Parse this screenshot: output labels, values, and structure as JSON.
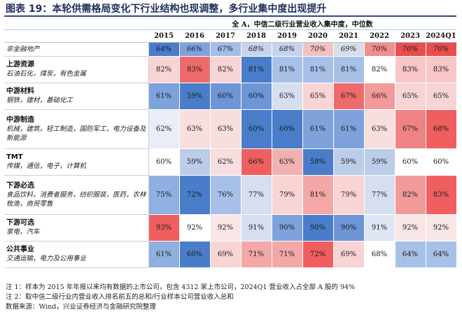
{
  "figure_title": "图表 19：本轮供需格局变化下行业结构也现调整，多行业集中度出现提升",
  "table_header": "全 A，中信二级行业营业收入集中度，中位数",
  "columns": [
    "2015",
    "2016",
    "2017",
    "2018",
    "2019",
    "2020",
    "2021",
    "2022",
    "2023",
    "2024Q1"
  ],
  "rows": [
    {
      "name": "",
      "sub": "非金融地产",
      "values": [
        "64%",
        "66%",
        "67%",
        "68%",
        "68%",
        "70%",
        "69%",
        "70%",
        "70%",
        "70%"
      ],
      "colors": [
        "#4a7dc9",
        "#7ea2db",
        "#a3bde6",
        "#c6d3ee",
        "#c6d3ee",
        "#f2c1c1",
        "#d9dde9",
        "#f08e8e",
        "#e94d4d",
        "#e94d4d"
      ],
      "italic": true
    },
    {
      "name": "上游资源",
      "sub": "石油石化，煤炭，有色金属",
      "values": [
        "82%",
        "83%",
        "82%",
        "81%",
        "81%",
        "81%",
        "81%",
        "82%",
        "83%",
        "83%"
      ],
      "colors": [
        "#f8d4d4",
        "#ef6b6b",
        "#f8d4d4",
        "#4a7dc9",
        "#a7c0e7",
        "#a7c0e7",
        "#a7c0e7",
        "#ffffff",
        "#f8c6c6",
        "#f8c6c6"
      ]
    },
    {
      "name": "中游材料",
      "sub": "钢铁，建材，基础化工",
      "values": [
        "61%",
        "59%",
        "60%",
        "60%",
        "63%",
        "65%",
        "67%",
        "66%",
        "65%",
        "65%"
      ],
      "colors": [
        "#7ea2db",
        "#4a7dc9",
        "#6e95d6",
        "#6e95d6",
        "#d6deef",
        "#f8d4d4",
        "#ef6b6b",
        "#f29a9a",
        "#f8d4d4",
        "#f8d4d4"
      ]
    },
    {
      "name": "中游制造",
      "sub": "机械，建筑，轻工制造，国防军工，电力设备及新能源",
      "values": [
        "62%",
        "63%",
        "63%",
        "60%",
        "60%",
        "61%",
        "61%",
        "63%",
        "67%",
        "68%"
      ],
      "colors": [
        "#e9edf6",
        "#f8dede",
        "#f8dede",
        "#4a7dc9",
        "#4a7dc9",
        "#7ea2db",
        "#7ea2db",
        "#f8dede",
        "#ef8383",
        "#ef5f5f"
      ]
    },
    {
      "name": "TMT",
      "sub": "传媒，通信，电子，计算机",
      "values": [
        "60%",
        "59%",
        "62%",
        "66%",
        "63%",
        "58%",
        "59%",
        "59%",
        "60%",
        "60%"
      ],
      "colors": [
        "#ffffff",
        "#bccdea",
        "#f8dede",
        "#ef5f5f",
        "#f3b0b0",
        "#4a7dc9",
        "#bccdea",
        "#bccdea",
        "#ffffff",
        "#ffffff"
      ]
    },
    {
      "name": "下游必选",
      "sub": "食品饮料，消费者服务，纺织服装，医药，农林牧渔，商贸零售",
      "values": [
        "75%",
        "72%",
        "76%",
        "77%",
        "79%",
        "81%",
        "79%",
        "77%",
        "82%",
        "83%"
      ],
      "colors": [
        "#8fb0e0",
        "#4a7dc9",
        "#a7c0e7",
        "#d6deef",
        "#f8d4d4",
        "#f3a7a7",
        "#f8d4d4",
        "#d6deef",
        "#f09a9a",
        "#ef5f5f"
      ]
    },
    {
      "name": "下游可选",
      "sub": "家电，汽车",
      "values": [
        "93%",
        "92%",
        "92%",
        "91%",
        "90%",
        "90%",
        "90%",
        "91%",
        "92%",
        "92%"
      ],
      "colors": [
        "#ef5f5f",
        "#ffffff",
        "#f8e6e6",
        "#d6deef",
        "#7ea2db",
        "#4a7dc9",
        "#6e95d6",
        "#dfe5f2",
        "#f8e6e6",
        "#f8e6e6"
      ]
    },
    {
      "name": "公共事业",
      "sub": "交通运输，电力及公用事业",
      "values": [
        "61%",
        "60%",
        "69%",
        "71%",
        "71%",
        "72%",
        "69%",
        "68%",
        "64%",
        "64%"
      ],
      "colors": [
        "#8fb0e0",
        "#4a7dc9",
        "#f8d4d4",
        "#f3a7a7",
        "#f3a7a7",
        "#ef5f5f",
        "#f8d4d4",
        "#ffffff",
        "#a7c0e7",
        "#a7c0e7"
      ]
    }
  ],
  "notes": [
    "注 1：样本为 2015 年年报以来均有数据的上市公司，包含 4312 家上市公司，2024Q1 营业收入占全部 A 股的 94%",
    "注 2：取中信二级行业内营业收入排名前五的总和/行业样本公司营业收入总和",
    "数据来源：Wind，兴业证券经济与金融研究院整理"
  ]
}
